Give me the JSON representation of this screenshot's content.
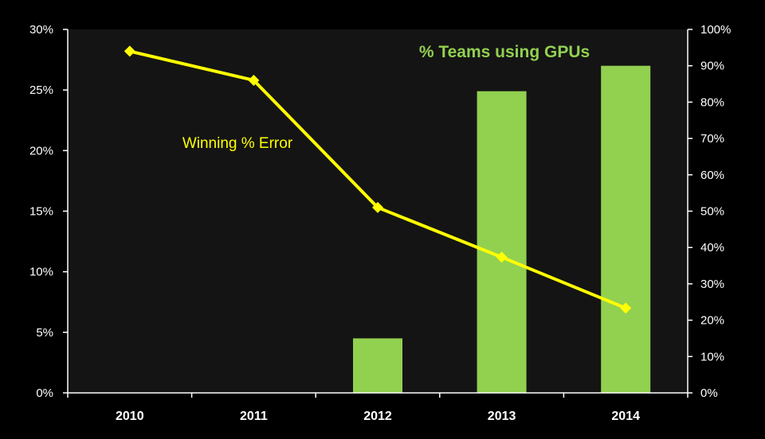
{
  "chart_data": {
    "type": "bar",
    "categories": [
      "2010",
      "2011",
      "2012",
      "2013",
      "2014"
    ],
    "series": [
      {
        "name": "% Teams using GPUs",
        "type": "bar",
        "axis": "right",
        "values": [
          0,
          0,
          15,
          83,
          90
        ],
        "color": "#92d050"
      },
      {
        "name": "Winning % Error",
        "type": "line",
        "axis": "left",
        "values": [
          28.2,
          25.8,
          15.3,
          11.2,
          7.0
        ],
        "color": "#ffff00",
        "marker": "diamond"
      }
    ],
    "y_left": {
      "ylim": [
        0,
        30
      ],
      "ticks": [
        0,
        5,
        10,
        15,
        20,
        25,
        30
      ],
      "tick_labels": [
        "0%",
        "5%",
        "10%",
        "15%",
        "20%",
        "25%",
        "30%"
      ]
    },
    "y_right": {
      "ylim": [
        0,
        100
      ],
      "ticks": [
        0,
        10,
        20,
        30,
        40,
        50,
        60,
        70,
        80,
        90,
        100
      ],
      "tick_labels": [
        "0%",
        "10%",
        "20%",
        "30%",
        "40%",
        "50%",
        "60%",
        "70%",
        "80%",
        "90%",
        "100%"
      ]
    },
    "grid": false,
    "legend": "none",
    "colors": {
      "background": "#000000",
      "plot_background": "#141414",
      "axis": "#ffffff",
      "text": "#ffffff"
    }
  }
}
